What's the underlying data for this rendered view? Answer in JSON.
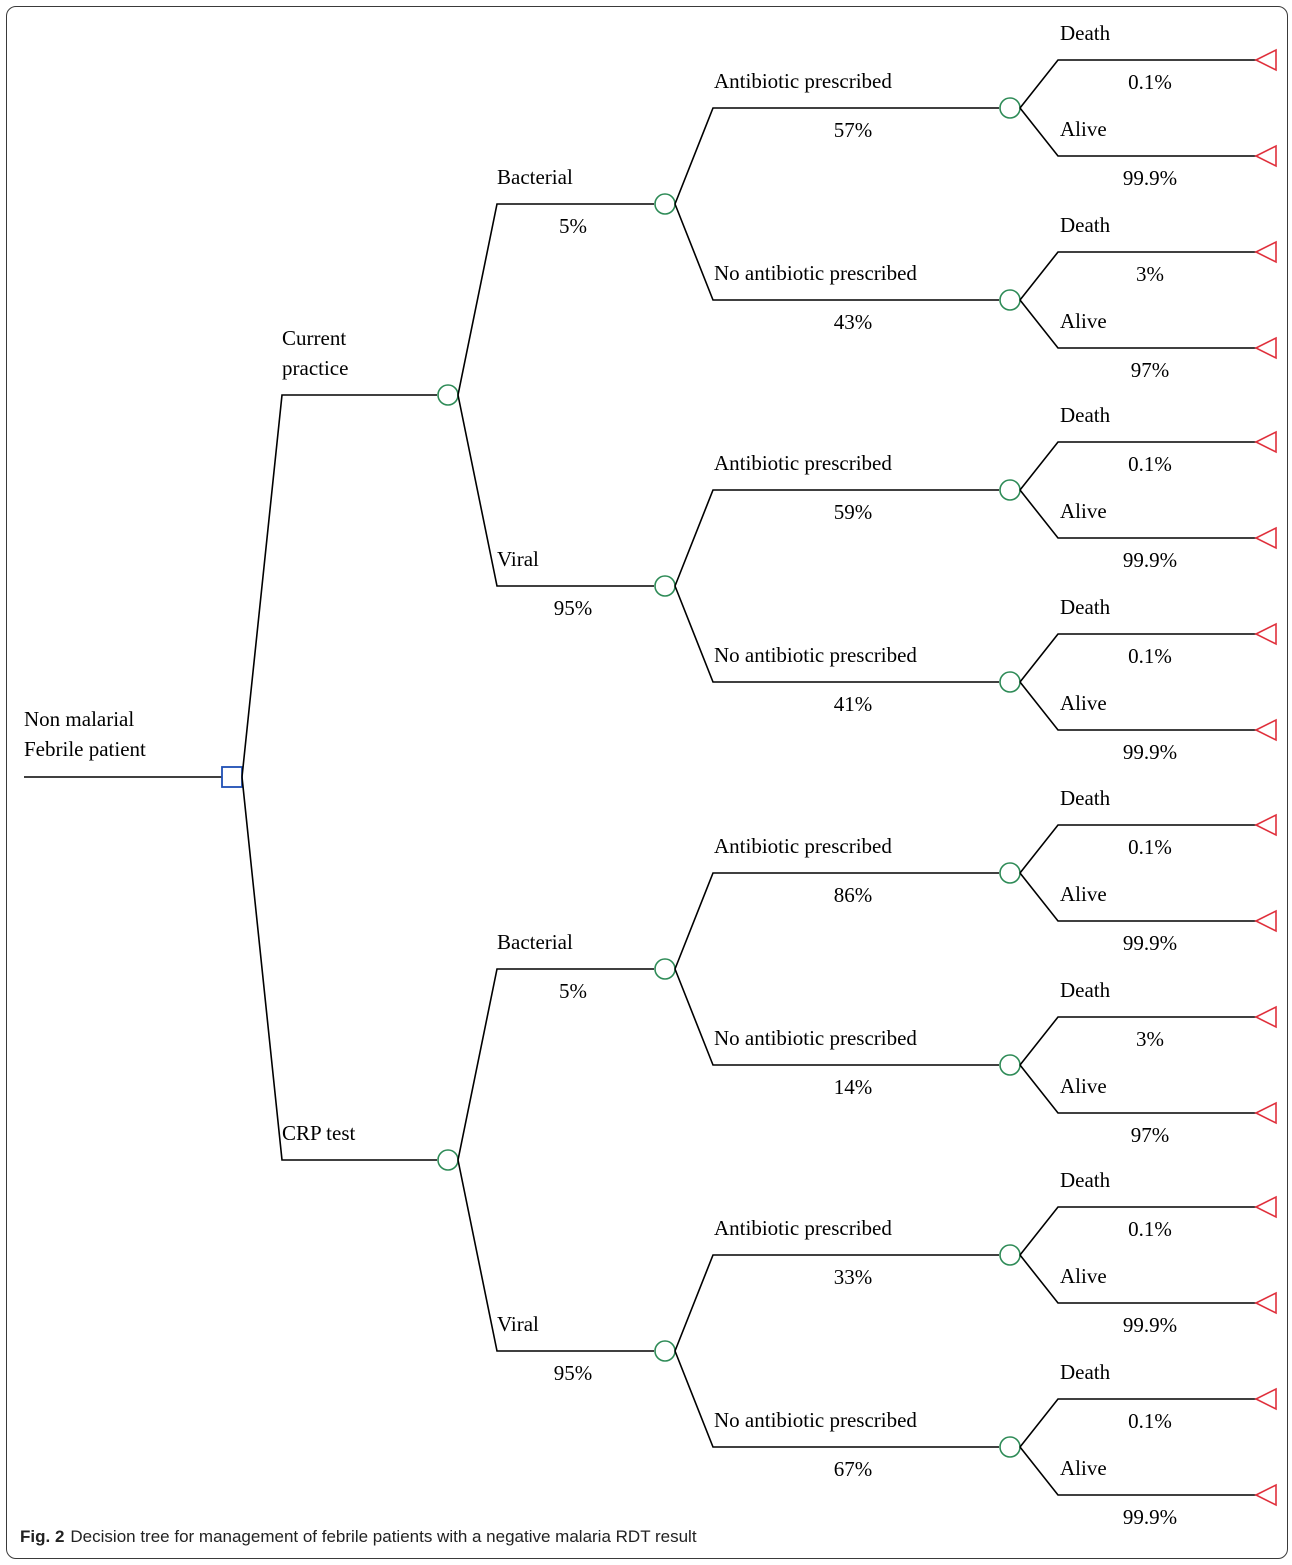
{
  "caption": {
    "label": "Fig. 2",
    "text": "Decision tree for management of febrile patients with a negative malaria RDT result"
  },
  "colors": {
    "decision_node": "#1f4fb4",
    "chance_node": "#2e8b57",
    "terminal_node": "#e0303c",
    "line": "#000000"
  },
  "tree": {
    "root": {
      "label_lines": [
        "Non malarial",
        "Febrile patient"
      ]
    },
    "strategies": [
      {
        "label_lines": [
          "Current",
          "practice"
        ],
        "branches": [
          {
            "label": "Bacterial",
            "prob": "5%",
            "prescriptions": [
              {
                "label": "Antibiotic prescribed",
                "prob": "57%",
                "outcomes": [
                  {
                    "label": "Death",
                    "prob": "0.1%"
                  },
                  {
                    "label": "Alive",
                    "prob": "99.9%"
                  }
                ]
              },
              {
                "label": "No antibiotic prescribed",
                "prob": "43%",
                "outcomes": [
                  {
                    "label": "Death",
                    "prob": "3%"
                  },
                  {
                    "label": "Alive",
                    "prob": "97%"
                  }
                ]
              }
            ]
          },
          {
            "label": "Viral",
            "prob": "95%",
            "prescriptions": [
              {
                "label": "Antibiotic prescribed",
                "prob": "59%",
                "outcomes": [
                  {
                    "label": "Death",
                    "prob": "0.1%"
                  },
                  {
                    "label": "Alive",
                    "prob": "99.9%"
                  }
                ]
              },
              {
                "label": "No antibiotic prescribed",
                "prob": "41%",
                "outcomes": [
                  {
                    "label": "Death",
                    "prob": "0.1%"
                  },
                  {
                    "label": "Alive",
                    "prob": "99.9%"
                  }
                ]
              }
            ]
          }
        ]
      },
      {
        "label_lines": [
          "CRP test"
        ],
        "branches": [
          {
            "label": "Bacterial",
            "prob": "5%",
            "prescriptions": [
              {
                "label": "Antibiotic prescribed",
                "prob": "86%",
                "outcomes": [
                  {
                    "label": "Death",
                    "prob": "0.1%"
                  },
                  {
                    "label": "Alive",
                    "prob": "99.9%"
                  }
                ]
              },
              {
                "label": "No antibiotic prescribed",
                "prob": "14%",
                "outcomes": [
                  {
                    "label": "Death",
                    "prob": "3%"
                  },
                  {
                    "label": "Alive",
                    "prob": "97%"
                  }
                ]
              }
            ]
          },
          {
            "label": "Viral",
            "prob": "95%",
            "prescriptions": [
              {
                "label": "Antibiotic prescribed",
                "prob": "33%",
                "outcomes": [
                  {
                    "label": "Death",
                    "prob": "0.1%"
                  },
                  {
                    "label": "Alive",
                    "prob": "99.9%"
                  }
                ]
              },
              {
                "label": "No antibiotic prescribed",
                "prob": "67%",
                "outcomes": [
                  {
                    "label": "Death",
                    "prob": "0.1%"
                  },
                  {
                    "label": "Alive",
                    "prob": "99.9%"
                  }
                ]
              }
            ]
          }
        ]
      }
    ]
  }
}
